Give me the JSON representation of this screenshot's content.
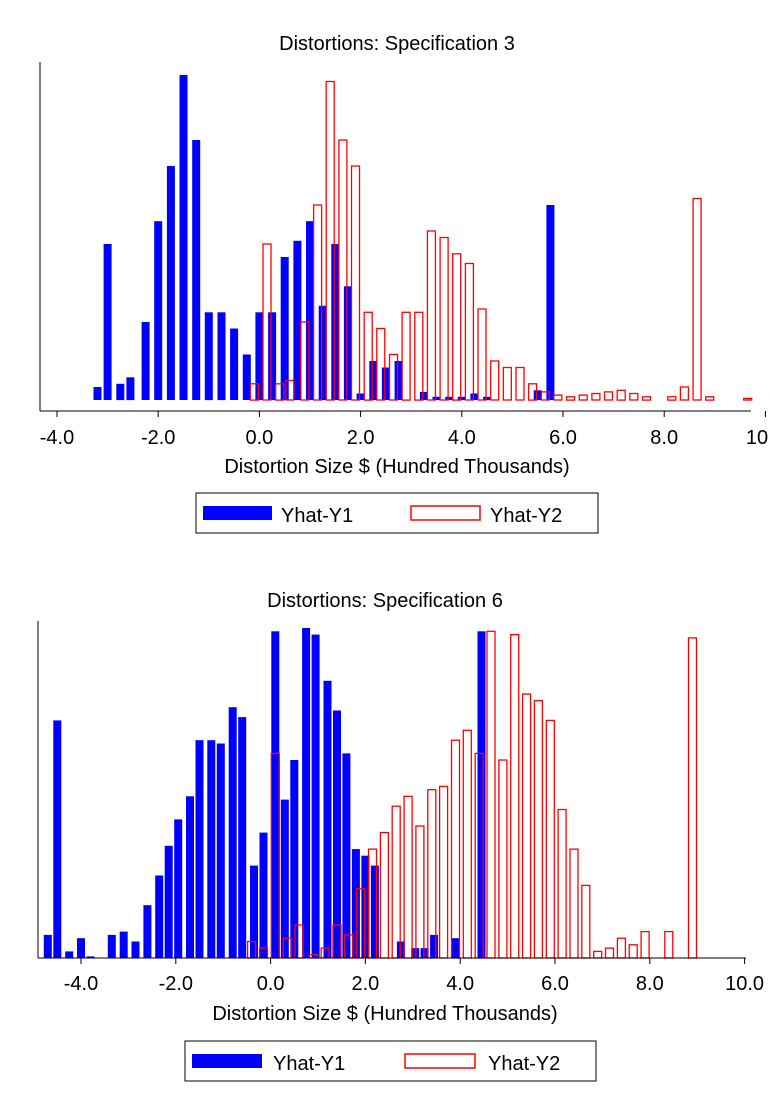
{
  "chart_data": [
    {
      "type": "bar",
      "title": "Distortions: Specification 3",
      "xlabel": "Distortion Size $ (Hundred Thousands)",
      "ylabel": "",
      "xlim": [
        -4.0,
        10.0
      ],
      "x_ticks": [
        "-4.0",
        "-2.0",
        "0.0",
        "2.0",
        "4.0",
        "6.0",
        "8.0",
        "10.0"
      ],
      "y_axis": "unlabeled relative frequency",
      "legend": "below",
      "series": [
        {
          "name": "Yhat-Y1",
          "style": "filled",
          "color": "#0000ff",
          "x": [
            -3.2,
            -3.0,
            -2.75,
            -2.55,
            -2.25,
            -2.0,
            -1.75,
            -1.5,
            -1.25,
            -1.0,
            -0.75,
            -0.5,
            -0.25,
            0.0,
            0.25,
            0.5,
            0.75,
            1.0,
            1.25,
            1.5,
            1.75,
            2.0,
            2.25,
            2.5,
            2.75,
            3.25,
            3.5,
            3.75,
            4.0,
            4.25,
            4.5,
            5.5,
            5.75
          ],
          "values": [
            0.04,
            0.48,
            0.05,
            0.07,
            0.24,
            0.55,
            0.72,
            1.0,
            0.8,
            0.27,
            0.27,
            0.22,
            0.14,
            0.27,
            0.27,
            0.44,
            0.49,
            0.55,
            0.29,
            0.48,
            0.35,
            0.02,
            0.12,
            0.1,
            0.12,
            0.025,
            0.01,
            0.01,
            0.01,
            0.02,
            0.01,
            0.03,
            0.6
          ]
        },
        {
          "name": "Yhat-Y2",
          "style": "outline",
          "color": "#ff0000",
          "x": [
            -0.1,
            0.15,
            0.4,
            0.6,
            0.9,
            1.15,
            1.4,
            1.65,
            1.9,
            2.15,
            2.4,
            2.65,
            2.9,
            3.15,
            3.4,
            3.65,
            3.9,
            4.15,
            4.4,
            4.65,
            4.9,
            5.15,
            5.4,
            5.65,
            5.9,
            6.15,
            6.4,
            6.65,
            6.9,
            7.15,
            7.4,
            7.65,
            8.15,
            8.4,
            8.65,
            8.9,
            9.65
          ],
          "values": [
            0.05,
            0.48,
            0.05,
            0.06,
            0.24,
            0.6,
            0.98,
            0.8,
            0.72,
            0.27,
            0.22,
            0.14,
            0.27,
            0.27,
            0.52,
            0.5,
            0.45,
            0.42,
            0.28,
            0.12,
            0.1,
            0.1,
            0.05,
            0.025,
            0.015,
            0.01,
            0.015,
            0.02,
            0.025,
            0.03,
            0.02,
            0.01,
            0.01,
            0.04,
            0.62,
            0.01,
            0.005
          ]
        }
      ]
    },
    {
      "type": "bar",
      "title": "Distortions: Specification 6",
      "xlabel": "Distortion Size $ (Hundred Thousands)",
      "ylabel": "",
      "xlim": [
        -4.8,
        10.0
      ],
      "x_ticks": [
        "-4.0",
        "-2.0",
        "0.0",
        "2.0",
        "4.0",
        "6.0",
        "8.0",
        "10.0"
      ],
      "y_axis": "unlabeled relative frequency",
      "legend": "below",
      "series": [
        {
          "name": "Yhat-Y1",
          "style": "filled",
          "color": "#0000ff",
          "x": [
            -4.7,
            -4.5,
            -4.25,
            -4.0,
            -3.8,
            -3.35,
            -3.1,
            -2.85,
            -2.6,
            -2.35,
            -2.15,
            -1.95,
            -1.7,
            -1.5,
            -1.25,
            -1.05,
            -0.8,
            -0.6,
            -0.35,
            -0.15,
            0.1,
            0.3,
            0.5,
            0.75,
            0.95,
            1.2,
            1.4,
            1.6,
            1.8,
            2.0,
            2.2,
            2.75,
            3.05,
            3.25,
            3.45,
            3.9,
            4.45
          ],
          "values": [
            0.07,
            0.72,
            0.02,
            0.06,
            0.005,
            0.07,
            0.08,
            0.05,
            0.16,
            0.25,
            0.34,
            0.42,
            0.49,
            0.66,
            0.66,
            0.65,
            0.76,
            0.73,
            0.28,
            0.38,
            0.99,
            0.48,
            0.6,
            1.0,
            0.98,
            0.84,
            0.75,
            0.62,
            0.33,
            0.31,
            0.28,
            0.05,
            0.03,
            0.03,
            0.07,
            0.06,
            0.99
          ]
        },
        {
          "name": "Yhat-Y2",
          "style": "outline",
          "color": "#ff0000",
          "x": [
            -0.4,
            -0.15,
            0.1,
            0.35,
            0.6,
            0.9,
            1.15,
            1.4,
            1.65,
            1.9,
            2.15,
            2.4,
            2.65,
            2.9,
            3.15,
            3.4,
            3.65,
            3.9,
            4.15,
            4.4,
            4.65,
            4.9,
            5.15,
            5.4,
            5.65,
            5.9,
            6.15,
            6.4,
            6.65,
            6.9,
            7.15,
            7.4,
            7.65,
            7.9,
            8.4,
            8.9
          ],
          "values": [
            0.05,
            0.03,
            0.62,
            0.06,
            0.1,
            0.01,
            0.03,
            0.1,
            0.07,
            0.21,
            0.33,
            0.38,
            0.46,
            0.49,
            0.4,
            0.51,
            0.52,
            0.66,
            0.69,
            0.62,
            0.99,
            0.6,
            0.98,
            0.8,
            0.78,
            0.72,
            0.45,
            0.33,
            0.22,
            0.02,
            0.03,
            0.06,
            0.04,
            0.08,
            0.08,
            0.97
          ]
        }
      ]
    }
  ]
}
